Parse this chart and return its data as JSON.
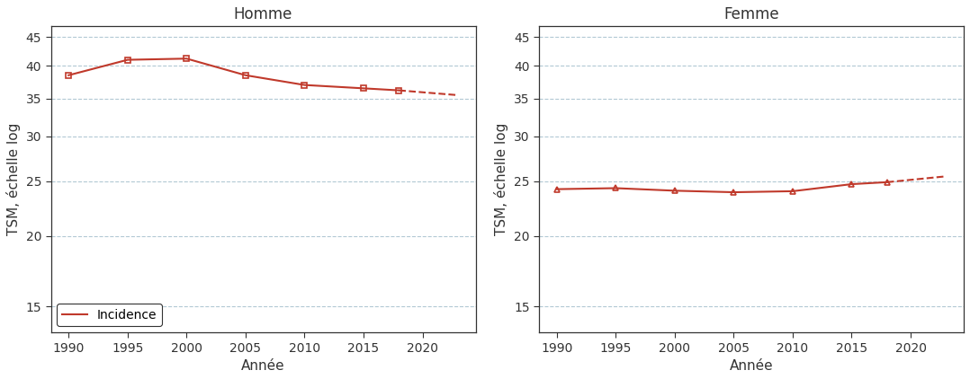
{
  "homme": {
    "title": "Homme",
    "solid_years": [
      1990,
      1995,
      2000,
      2005,
      2010,
      2015,
      2018
    ],
    "solid_values": [
      38.5,
      41.0,
      41.2,
      38.5,
      37.0,
      36.5,
      36.2
    ],
    "dash_years": [
      2018,
      2023
    ],
    "dash_values": [
      36.2,
      35.5
    ],
    "marker": "s"
  },
  "femme": {
    "title": "Femme",
    "solid_years": [
      1990,
      1995,
      2000,
      2005,
      2010,
      2015,
      2018
    ],
    "solid_values": [
      24.2,
      24.3,
      24.05,
      23.9,
      24.0,
      24.7,
      24.9
    ],
    "dash_years": [
      2018,
      2023
    ],
    "dash_values": [
      24.9,
      25.5
    ],
    "marker": "^"
  },
  "line_color": "#c0392b",
  "legend_label": "Incidence",
  "xlabel": "Année",
  "ylabel": "TSM, échelle log",
  "yticks": [
    15,
    20,
    25,
    30,
    35,
    40,
    45
  ],
  "xticks": [
    1990,
    1995,
    2000,
    2005,
    2010,
    2015,
    2020
  ],
  "xmin": 1988.5,
  "xmax": 2024.5,
  "ymin": 13.5,
  "ymax": 47.0,
  "grid_color": "#aac4d0",
  "bg_color": "#ffffff",
  "spine_color": "#333333",
  "tick_label_color": "#333333"
}
